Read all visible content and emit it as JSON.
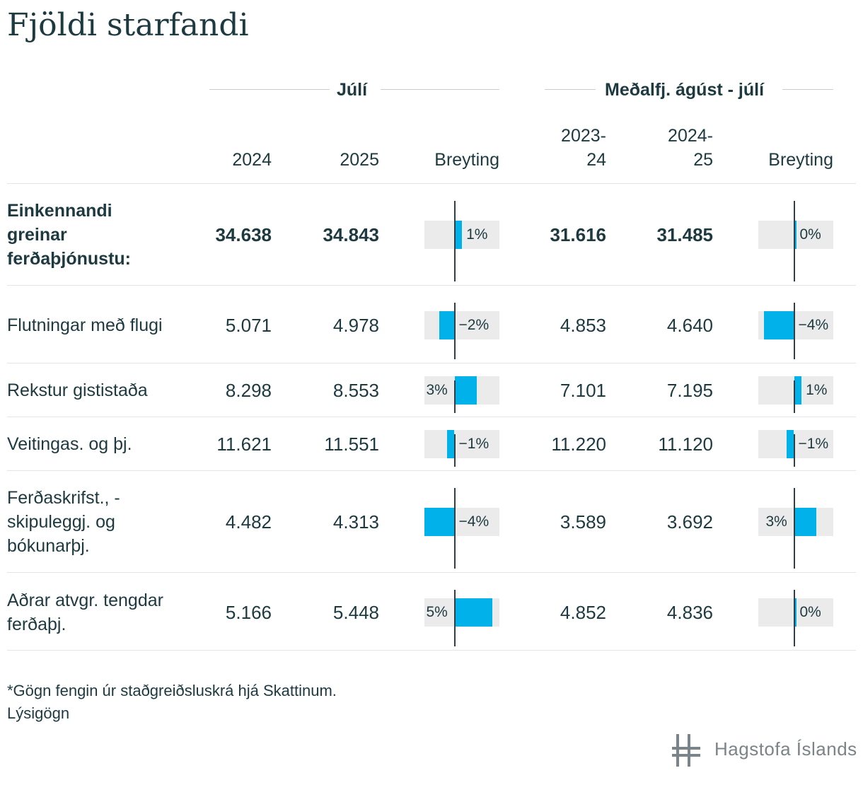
{
  "title": "Fjöldi starfandi",
  "groups": {
    "july": "Júlí",
    "avg": "Meðalfj. ágúst - júlí"
  },
  "columns": {
    "july_prev": "2024",
    "july_curr": "2025",
    "july_change": "Breyting",
    "avg_prev_1": "2023-",
    "avg_prev_2": "24",
    "avg_curr_1": "2024-",
    "avg_curr_2": "25",
    "avg_change": "Breyting"
  },
  "rows": [
    {
      "label": "Einkennandi greinar ferðaþjónustu:",
      "july_2024": "34.638",
      "july_2025": "34.843",
      "july_pct": 1,
      "july_pct_label": "1%",
      "avg_prev": "31.616",
      "avg_curr": "31.485",
      "avg_pct": 0,
      "avg_pct_label": "0%"
    },
    {
      "label": "Flutningar með flugi",
      "july_2024": "5.071",
      "july_2025": "4.978",
      "july_pct": -2,
      "july_pct_label": "−2%",
      "avg_prev": "4.853",
      "avg_curr": "4.640",
      "avg_pct": -4,
      "avg_pct_label": "−4%"
    },
    {
      "label": "Rekstur gististaða",
      "july_2024": "8.298",
      "july_2025": "8.553",
      "july_pct": 3,
      "july_pct_label": "3%",
      "avg_prev": "7.101",
      "avg_curr": "7.195",
      "avg_pct": 1,
      "avg_pct_label": "1%"
    },
    {
      "label": "Veitingas. og þj.",
      "july_2024": "11.621",
      "july_2025": "11.551",
      "july_pct": -1,
      "july_pct_label": "−1%",
      "avg_prev": "11.220",
      "avg_curr": "11.120",
      "avg_pct": -1,
      "avg_pct_label": "−1%"
    },
    {
      "label": "Ferðaskrifst., -skipuleggj. og bókunarþj.",
      "july_2024": "4.482",
      "july_2025": "4.313",
      "july_pct": -4,
      "july_pct_label": "−4%",
      "avg_prev": "3.589",
      "avg_curr": "3.692",
      "avg_pct": 3,
      "avg_pct_label": "3%"
    },
    {
      "label": "Aðrar atvgr. tengdar ferðaþj.",
      "july_2024": "5.166",
      "july_2025": "5.448",
      "july_pct": 5,
      "july_pct_label": "5%",
      "avg_prev": "4.852",
      "avg_curr": "4.836",
      "avg_pct": 0,
      "avg_pct_label": "0%"
    }
  ],
  "chart_data": {
    "type": "table",
    "title": "Fjöldi starfandi",
    "column_groups": [
      "Júlí",
      "Meðalfj. ágúst - júlí"
    ],
    "columns": [
      "2024",
      "2025",
      "Breyting",
      "2023-24",
      "2024-25",
      "Breyting"
    ],
    "categories": [
      "Einkennandi greinar ferðaþjónustu:",
      "Flutningar með flugi",
      "Rekstur gististaða",
      "Veitingas. og þj.",
      "Ferðaskrifst., -skipuleggj. og bókunarþj.",
      "Aðrar atvgr. tengdar ferðaþj."
    ],
    "series": [
      {
        "name": "2024",
        "values": [
          34638,
          5071,
          8298,
          11621,
          4482,
          5166
        ]
      },
      {
        "name": "2025",
        "values": [
          34843,
          4978,
          8553,
          11551,
          4313,
          5448
        ]
      },
      {
        "name": "Breyting",
        "values": [
          1,
          -2,
          3,
          -1,
          -4,
          5
        ]
      },
      {
        "name": "2023-24",
        "values": [
          31616,
          4853,
          7101,
          11220,
          3589,
          4852
        ]
      },
      {
        "name": "2024-25",
        "values": [
          31485,
          4640,
          7195,
          11120,
          3692,
          4836
        ]
      },
      {
        "name": "Breyting",
        "values": [
          0,
          -4,
          1,
          -1,
          3,
          0
        ]
      }
    ],
    "bar_range": [
      -5,
      5
    ],
    "bar_color": "#00b1ea"
  },
  "footnote": {
    "line1": "*Gögn fengin úr staðgreiðsluskrá hjá Skattinum.",
    "line2": "Lýsigögn"
  },
  "logo": {
    "text": "Hagstofa Íslands",
    "icon": "hagstofa-logo-icon"
  },
  "colors": {
    "text": "#1d3a40",
    "bar": "#00b1ea",
    "bar_background": "#ebebeb",
    "axis": "#333f44"
  }
}
